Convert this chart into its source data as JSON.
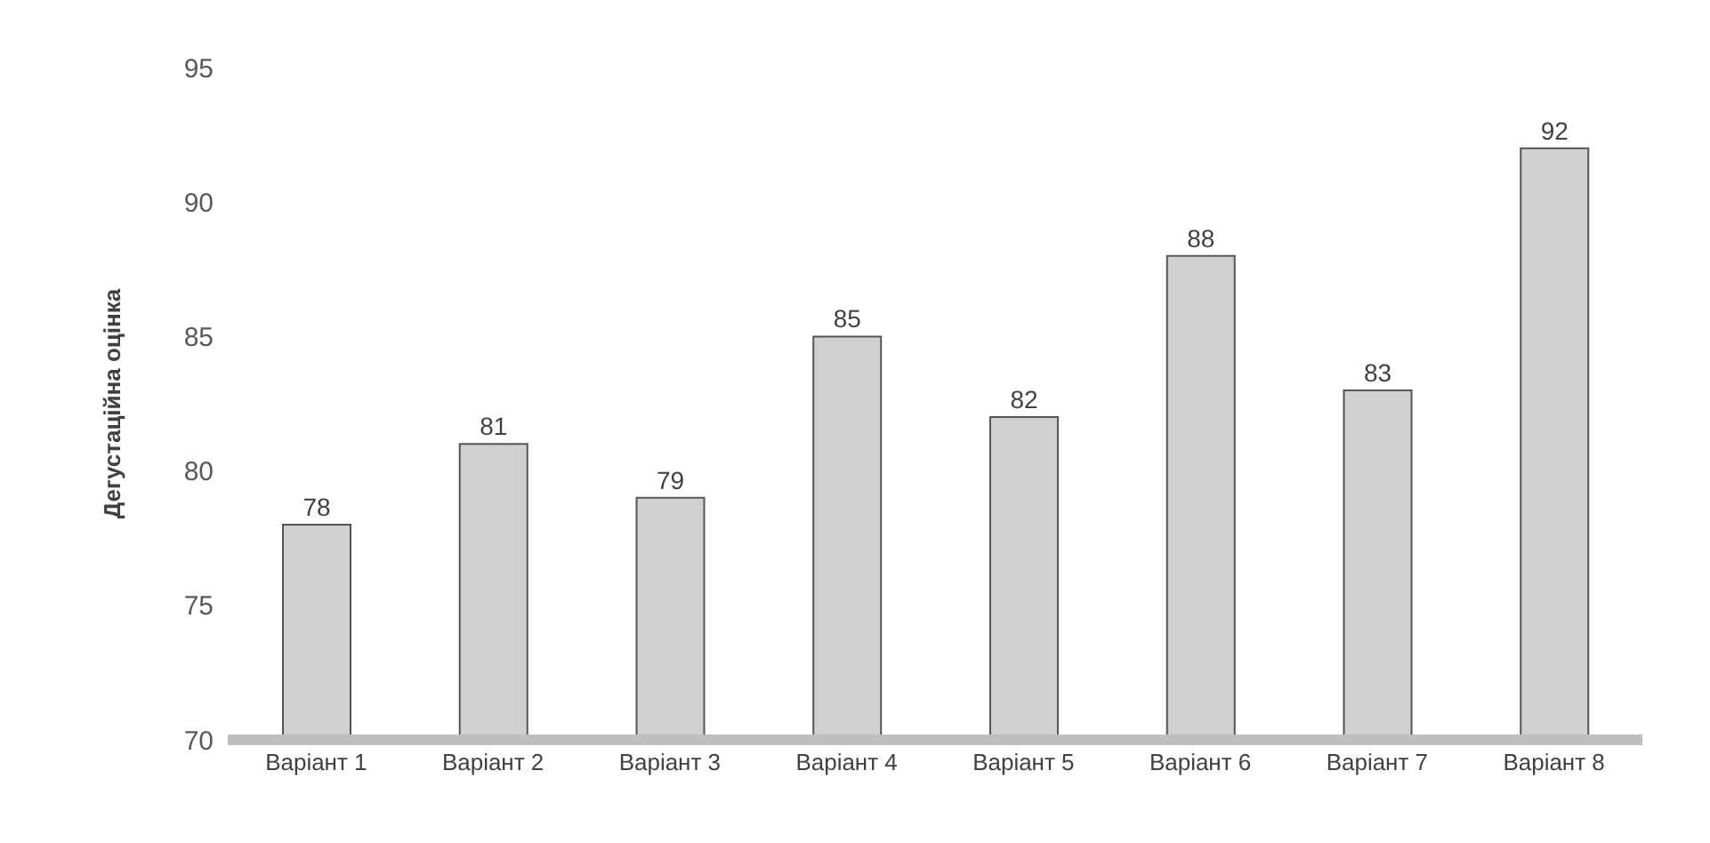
{
  "chart_data": {
    "type": "bar",
    "ylabel": "Дегустаційна оцінка",
    "categories": [
      "Варіант 1",
      "Варіант 2",
      "Варіант 3",
      "Варіант 4",
      "Варіант 5",
      "Варіант 6",
      "Варіант 7",
      "Варіант 8"
    ],
    "values": [
      78,
      81,
      79,
      85,
      82,
      88,
      83,
      92
    ],
    "color": "#d0d0d0",
    "ylim": [
      70,
      95
    ],
    "yticks": [
      70,
      75,
      80,
      85,
      90,
      95
    ],
    "grid": false,
    "data_labels": true
  }
}
